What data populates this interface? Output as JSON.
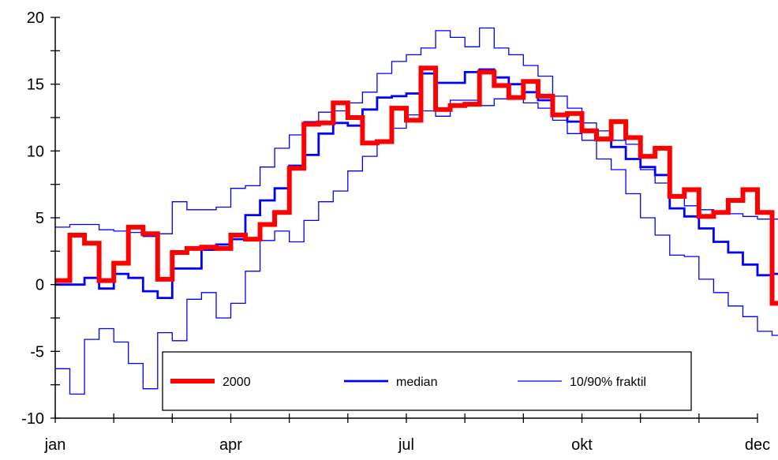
{
  "chart_data": {
    "type": "line",
    "title": "",
    "xlabel": "",
    "ylabel": "",
    "xlim": [
      0,
      12
    ],
    "ylim": [
      -10,
      20
    ],
    "x_ticks": [
      {
        "value": 0,
        "label": "jan"
      },
      {
        "value": 3,
        "label": "apr"
      },
      {
        "value": 6,
        "label": "jul"
      },
      {
        "value": 9,
        "label": "okt"
      },
      {
        "value": 12,
        "label": "dec"
      }
    ],
    "y_ticks": [
      {
        "value": 20,
        "label": "20"
      },
      {
        "value": 15,
        "label": "15"
      },
      {
        "value": 10,
        "label": "10"
      },
      {
        "value": 5,
        "label": "5"
      },
      {
        "value": 0,
        "label": "0"
      },
      {
        "value": -5,
        "label": "-5"
      },
      {
        "value": -10,
        "label": "-10"
      }
    ],
    "legend_position": "bottom-center",
    "step_width": 0.25,
    "series": [
      {
        "name": "2000",
        "color": "#ff0000",
        "style": "thick",
        "values": [
          0.3,
          3.7,
          3.1,
          0.3,
          1.6,
          4.3,
          3.8,
          0.4,
          2.4,
          2.7,
          2.8,
          2.7,
          3.7,
          3.4,
          4.5,
          5.4,
          8.7,
          12.0,
          12.1,
          13.6,
          12.5,
          10.6,
          10.7,
          13.2,
          12.3,
          16.2,
          13.1,
          13.4,
          13.5,
          15.9,
          14.9,
          14.0,
          15.2,
          14.1,
          12.7,
          12.8,
          11.5,
          10.9,
          12.2,
          11.0,
          9.6,
          10.2,
          6.6,
          7.1,
          5.1,
          5.4,
          6.3,
          7.1,
          5.4,
          -1.4
        ]
      },
      {
        "name": "median",
        "color": "#0000ff",
        "style": "medium",
        "values": [
          0.0,
          0.0,
          0.5,
          -0.3,
          0.8,
          0.5,
          -0.5,
          -1.0,
          1.2,
          1.2,
          2.6,
          3.0,
          3.4,
          5.2,
          6.3,
          7.2,
          8.9,
          9.7,
          11.3,
          12.1,
          11.9,
          13.1,
          14.0,
          14.1,
          14.3,
          15.8,
          15.1,
          15.1,
          15.9,
          16.1,
          15.5,
          15.0,
          14.4,
          13.8,
          12.7,
          12.2,
          11.6,
          10.8,
          10.3,
          9.4,
          8.8,
          8.2,
          5.7,
          5.1,
          4.2,
          3.2,
          2.4,
          1.5,
          0.7,
          0.8
        ]
      },
      {
        "name": "10/90% fraktil",
        "color": "#0000ff",
        "style": "thin",
        "values": [
          -6.3,
          -8.2,
          -4.1,
          -3.3,
          -4.3,
          -5.9,
          -7.8,
          -3.6,
          -4.2,
          -1.1,
          -0.6,
          -2.5,
          -1.4,
          1.0,
          3.3,
          4.0,
          3.2,
          4.8,
          6.2,
          7.0,
          8.5,
          9.6,
          10.6,
          11.7,
          12.7,
          13.0,
          12.6,
          13.8,
          13.8,
          13.4,
          13.9,
          14.1,
          13.6,
          13.2,
          12.3,
          11.3,
          10.8,
          9.4,
          8.6,
          6.8,
          5.0,
          3.7,
          2.2,
          2.1,
          0.4,
          -0.6,
          -1.6,
          -2.4,
          -3.5,
          -3.8
        ]
      },
      {
        "name": "90% fraktil",
        "color": "#0000ff",
        "style": "thin",
        "values": [
          4.3,
          4.5,
          4.5,
          4.1,
          4.0,
          3.9,
          3.6,
          3.8,
          6.2,
          5.6,
          5.6,
          5.8,
          7.2,
          7.4,
          8.8,
          10.2,
          11.2,
          12.2,
          12.9,
          13.0,
          13.6,
          14.4,
          15.8,
          16.7,
          17.2,
          17.7,
          19.0,
          18.5,
          17.8,
          19.2,
          17.7,
          17.2,
          16.4,
          15.6,
          14.1,
          13.2,
          12.1,
          11.5,
          10.8,
          10.5,
          8.6,
          7.6,
          6.6,
          5.9,
          5.6,
          5.4,
          5.3,
          5.1,
          4.9,
          4.9
        ]
      }
    ],
    "legend": [
      {
        "label": "2000",
        "color": "#ff0000",
        "style": "thick"
      },
      {
        "label": "median",
        "color": "#0000ff",
        "style": "medium"
      },
      {
        "label": "10/90% fraktil",
        "color": "#0000ff",
        "style": "thin"
      }
    ]
  }
}
